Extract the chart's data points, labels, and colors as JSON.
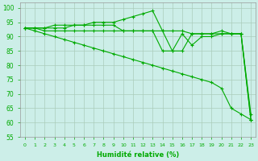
{
  "xlabel": "Humidité relative (%)",
  "bg_color": "#cceee8",
  "grid_color": "#aaccbb",
  "line_color": "#00aa00",
  "xlim": [
    -0.5,
    23.5
  ],
  "ylim": [
    55,
    102
  ],
  "xticks": [
    0,
    1,
    2,
    3,
    4,
    5,
    6,
    7,
    8,
    9,
    10,
    11,
    12,
    13,
    14,
    15,
    16,
    17,
    18,
    19,
    20,
    21,
    22,
    23
  ],
  "yticks": [
    55,
    60,
    65,
    70,
    75,
    80,
    85,
    90,
    95,
    100
  ],
  "series1": [
    93,
    93,
    93,
    93,
    93,
    94,
    94,
    95,
    95,
    95,
    96,
    97,
    98,
    99,
    92,
    85,
    85,
    91,
    91,
    91,
    92,
    91,
    91,
    63
  ],
  "series2": [
    93,
    93,
    93,
    94,
    94,
    94,
    94,
    94,
    94,
    94,
    92,
    92,
    92,
    92,
    92,
    92,
    92,
    91,
    91,
    91,
    91,
    91,
    91,
    61
  ],
  "series3": [
    93,
    93,
    92,
    92,
    92,
    92,
    92,
    92,
    92,
    92,
    92,
    92,
    92,
    92,
    85,
    85,
    91,
    87,
    90,
    90,
    91,
    91,
    91,
    61
  ],
  "series4_diagonal": [
    93,
    92,
    91,
    90,
    89,
    88,
    87,
    86,
    85,
    84,
    83,
    82,
    81,
    80,
    79,
    78,
    77,
    76,
    75,
    74,
    72,
    65,
    63,
    61
  ]
}
